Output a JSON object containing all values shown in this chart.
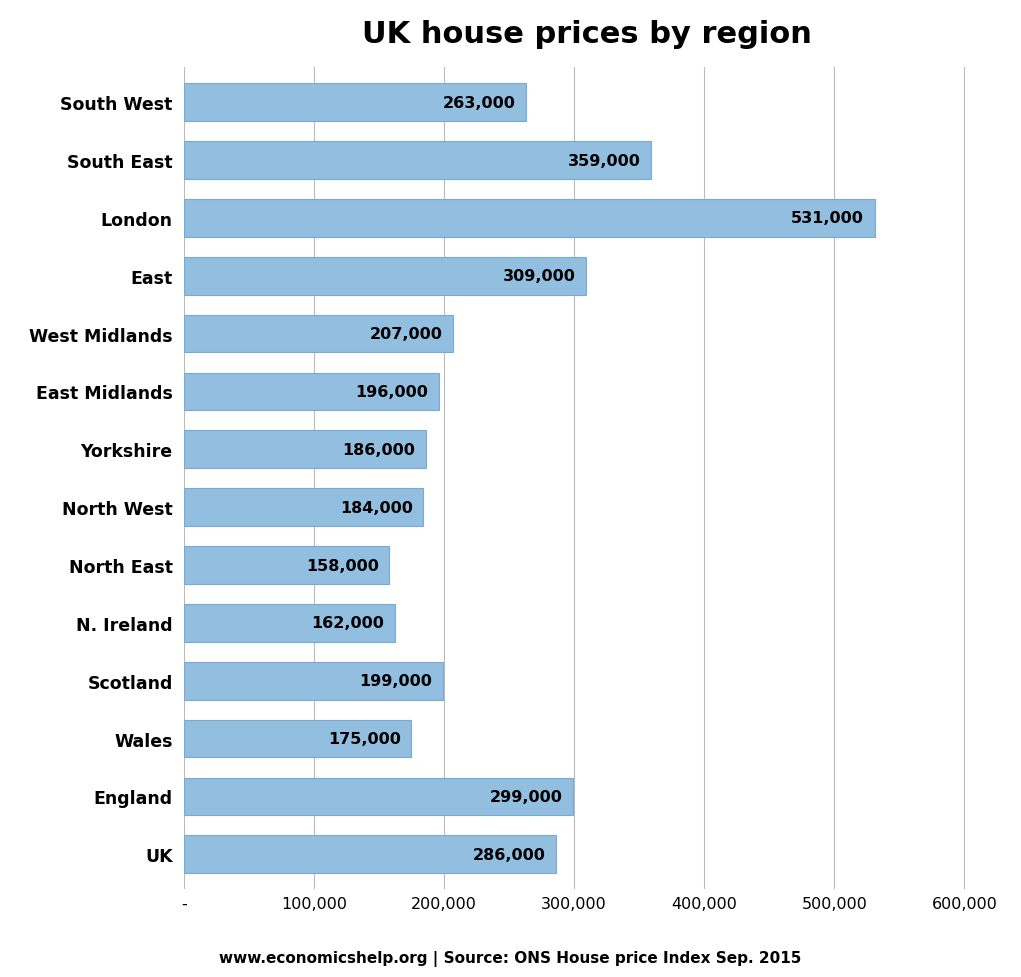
{
  "title": "UK house prices by region",
  "categories": [
    "South West",
    "South East",
    "London",
    "East",
    "West Midlands",
    "East Midlands",
    "Yorkshire",
    "North West",
    "North East",
    "N. Ireland",
    "Scotland",
    "Wales",
    "England",
    "UK"
  ],
  "values": [
    263000,
    359000,
    531000,
    309000,
    207000,
    196000,
    186000,
    184000,
    158000,
    162000,
    199000,
    175000,
    299000,
    286000
  ],
  "bar_color": "#92BEE0",
  "bar_edgecolor": "#7AAACF",
  "background_color": "#FFFFFF",
  "xlim": [
    0,
    620000
  ],
  "xticks": [
    0,
    100000,
    200000,
    300000,
    400000,
    500000,
    600000
  ],
  "xtick_labels": [
    "-",
    "100,000",
    "200,000",
    "300,000",
    "400,000",
    "500,000",
    "600,000"
  ],
  "grid_color": "#BBBBBB",
  "label_fontsize": 12.5,
  "title_fontsize": 22,
  "tick_fontsize": 11.5,
  "annotation_fontsize": 11.5,
  "footer_text": "www.economicshelp.org | Source: ONS House price Index Sep. 2015",
  "bar_height": 0.65
}
